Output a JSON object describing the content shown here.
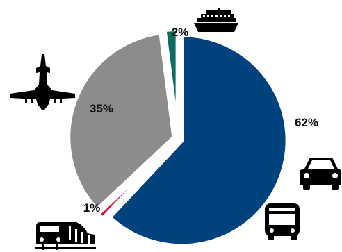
{
  "chart_data": {
    "type": "pie",
    "exploded": true,
    "slices": [
      {
        "label": "62%",
        "value": 62,
        "icon": "car-icon",
        "icon2": "bus-icon",
        "color": "#00427e"
      },
      {
        "label": "1%",
        "value": 1,
        "icon": "train-icon",
        "color": "#cc1033"
      },
      {
        "label": "35%",
        "value": 35,
        "icon": "airplane-icon",
        "color": "#8c8c8c"
      },
      {
        "label": "2%",
        "value": 2,
        "icon": "ship-icon",
        "color": "#0d6b60"
      }
    ]
  }
}
